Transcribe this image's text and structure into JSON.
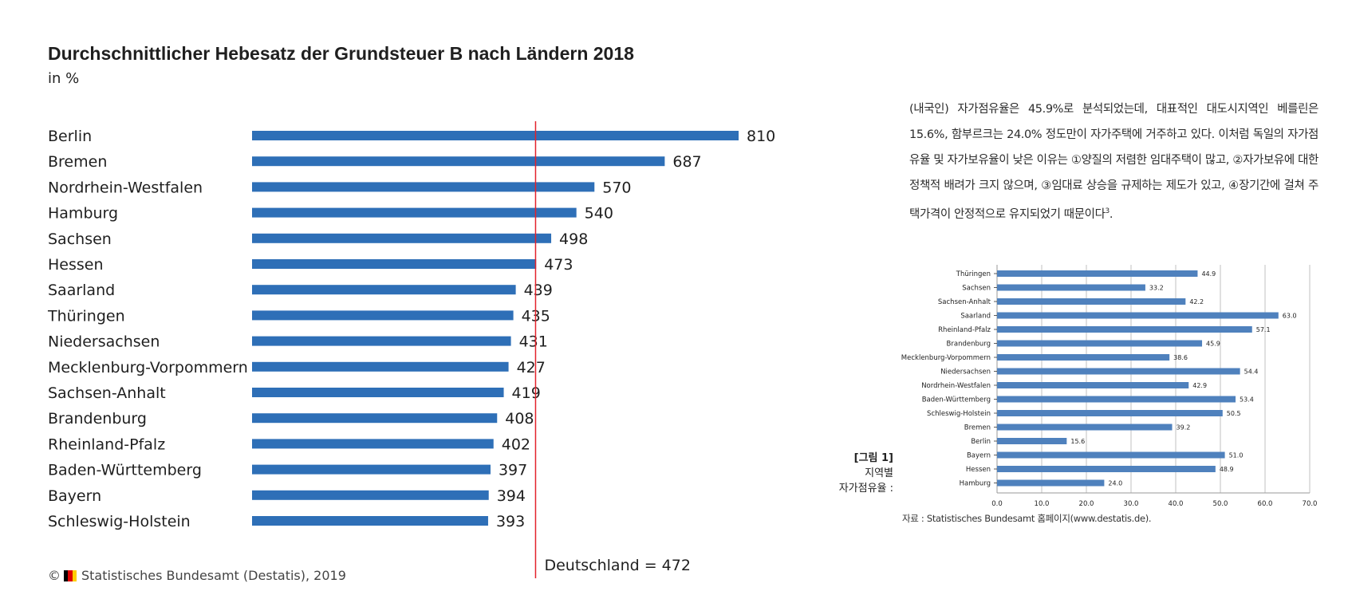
{
  "left_chart": {
    "title": "Durchschnittlicher Hebesatz der Grundsteuer B nach Ländern 2018",
    "subtitle": "in %",
    "copyright": "Statistisches Bundesamt (Destatis), 2019",
    "copyright_symbol": "©",
    "colors": {
      "bar": "#2e6fb7",
      "reference_line": "#e3222b",
      "text": "#1f1f1f"
    }
  },
  "chart_data": [
    {
      "type": "bar",
      "orientation": "horizontal",
      "title": "Durchschnittlicher Hebesatz der Grundsteuer B nach Ländern 2018",
      "subtitle": "in %",
      "categories": [
        "Berlin",
        "Bremen",
        "Nordrhein-Westfalen",
        "Hamburg",
        "Sachsen",
        "Hessen",
        "Saarland",
        "Thüringen",
        "Niedersachsen",
        "Mecklenburg-Vorpommern",
        "Sachsen-Anhalt",
        "Brandenburg",
        "Rheinland-Pfalz",
        "Baden-Württemberg",
        "Bayern",
        "Schleswig-Holstein"
      ],
      "values": [
        810,
        687,
        570,
        540,
        498,
        473,
        439,
        435,
        431,
        427,
        419,
        408,
        402,
        397,
        394,
        393
      ],
      "reference_line": {
        "value": 472,
        "label": "Deutschland = 472"
      },
      "xlim": [
        0,
        810
      ],
      "grid": false,
      "data_labels": true
    },
    {
      "type": "bar",
      "orientation": "horizontal",
      "categories": [
        "Thüringen",
        "Sachsen",
        "Sachsen-Anhalt",
        "Saarland",
        "Rheinland-Pfalz",
        "Brandenburg",
        "Mecklenburg-Vorpommern",
        "Niedersachsen",
        "Nordrhein-Westfalen",
        "Baden-Württemberg",
        "Schleswig-Holstein",
        "Bremen",
        "Berlin",
        "Bayern",
        "Hessen",
        "Hamburg"
      ],
      "values": [
        44.9,
        33.2,
        42.2,
        63.0,
        57.1,
        45.9,
        38.6,
        54.4,
        42.9,
        53.4,
        50.5,
        39.2,
        15.6,
        51.0,
        48.9,
        24.0
      ],
      "value_labels": [
        "44.9",
        "33.2",
        "42.2",
        "63.0",
        "57.1",
        "45.9",
        "38.6",
        "54.4",
        "42.9",
        "53.4",
        "50.5",
        "39.2",
        "15.6",
        "51.0",
        "48.9",
        "24.0"
      ],
      "xlim": [
        0,
        70
      ],
      "xticks": [
        "0.0",
        "10.0",
        "20.0",
        "30.0",
        "40.0",
        "50.0",
        "60.0",
        "70.0"
      ],
      "grid": true,
      "data_labels": true
    }
  ],
  "right_panel": {
    "paragraph": "(내국인) 자가점유율은 45.9%로 분석되었는데, 대표적인 대도시지역인 베를린은 15.6%, 함부르크는 24.0% 정도만이 자가주택에 거주하고 있다. 이처럼 독일의 자가점유율 및 자가보유율이 낮은 이유는 ①양질의 저렴한 임대주택이 많고, ②자가보유에 대한 정책적 배려가 크지 않으며, ③임대료 상승을 규제하는 제도가 있고, ④장기간에 걸쳐 주택가격이 안정적으로 유지되었기 때문이다",
    "footnote_mark": "3",
    "paragraph_end": ".",
    "figure_label": {
      "number": "[그림 1]",
      "line1": "지역별",
      "line2": "자가점유율 :"
    },
    "source": "자료 : Statistisches Bundesamt 홈페이지(www.destatis.de).",
    "colors": {
      "bar": "#4f81bd",
      "grid": "#999999"
    }
  }
}
